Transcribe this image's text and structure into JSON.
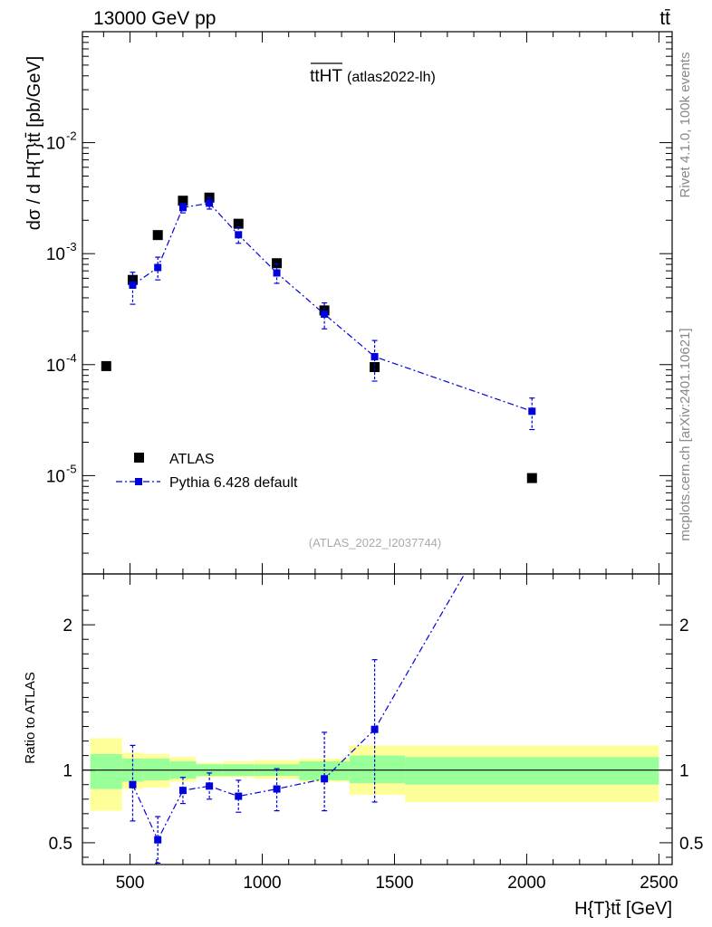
{
  "header": {
    "energy_label": "13000 GeV pp",
    "process_label": "tt̄"
  },
  "side_labels": {
    "rivet": "Rivet 4.1.0,  100k events",
    "mcplots": "mcplots.cern.ch [arXiv:2401.10621]"
  },
  "plot_title": {
    "main": "ttHT",
    "sub": "(atlas2022-lh)"
  },
  "watermark": "(ATLAS_2022_I2037744)",
  "legend": {
    "data_label": "ATLAS",
    "mc_label": "Pythia 6.428 default"
  },
  "colors": {
    "data": "#000000",
    "mc": "#0000dd",
    "band_inner": "#99ff99",
    "band_outer": "#ffff99"
  },
  "chart_data": [
    {
      "type": "scatter",
      "panel": "main",
      "ylabel": "dσ / d H{T}tt̄ [pb/GeV]",
      "yscale": "log",
      "ylim": [
        1.3e-06,
        0.1
      ],
      "xlim": [
        320,
        2550
      ],
      "ytick_labels": [
        "10^-5",
        "10^-4",
        "10^-3",
        "10^-2"
      ],
      "ytick_values": [
        1e-05,
        0.0001,
        0.001,
        0.01
      ],
      "series": [
        {
          "name": "ATLAS",
          "x": [
            410,
            510,
            605,
            700,
            800,
            910,
            1055,
            1235,
            1425,
            2020
          ],
          "xlow": [
            350,
            470,
            550,
            650,
            750,
            850,
            970,
            1140,
            1330,
            1540
          ],
          "xhigh": [
            470,
            550,
            650,
            750,
            850,
            970,
            1140,
            1330,
            1540,
            2500
          ],
          "values": [
            9.7e-05,
            0.00058,
            0.00147,
            0.003,
            0.0032,
            0.00186,
            0.00082,
            0.000308,
            9.5e-05,
            9.5e-06
          ]
        },
        {
          "name": "Pythia 6.428 default",
          "x": [
            510,
            605,
            700,
            800,
            910,
            1055,
            1235,
            1425,
            2020
          ],
          "values": [
            0.00052,
            0.00075,
            0.0026,
            0.00285,
            0.00148,
            0.00067,
            0.000285,
            0.000118,
            3.8e-05
          ],
          "err_low": [
            0.00035,
            0.00058,
            0.00233,
            0.00252,
            0.00124,
            0.00054,
            0.00021,
            7.1e-05,
            2.6e-05
          ],
          "err_high": [
            0.00068,
            0.00093,
            0.00284,
            0.00322,
            0.00174,
            0.00081,
            0.00036,
            0.000165,
            5e-05
          ]
        }
      ]
    },
    {
      "type": "scatter",
      "panel": "ratio",
      "xlabel": "H{T}tt̄ [GeV]",
      "ylabel": "Ratio to ATLAS",
      "ylim": [
        0.35,
        2.35
      ],
      "xlim": [
        320,
        2550
      ],
      "xtick_values": [
        500,
        1000,
        1500,
        2000,
        2500
      ],
      "xtick_labels": [
        "500",
        "1000",
        "1500",
        "2000",
        "2500"
      ],
      "ytick_values": [
        0.5,
        1,
        2
      ],
      "ytick_labels": [
        "0.5",
        "1",
        "2"
      ],
      "bands": {
        "xlow": [
          350,
          470,
          550,
          650,
          750,
          850,
          970,
          1140,
          1330,
          1540
        ],
        "xhigh": [
          470,
          550,
          650,
          750,
          850,
          970,
          1140,
          1330,
          1540,
          2500
        ],
        "inner_low": [
          0.87,
          0.92,
          0.93,
          0.94,
          0.96,
          0.96,
          0.96,
          0.93,
          0.91,
          0.9
        ],
        "inner_high": [
          1.11,
          1.08,
          1.08,
          1.06,
          1.04,
          1.04,
          1.04,
          1.06,
          1.1,
          1.09
        ],
        "outer_low": [
          0.72,
          0.87,
          0.88,
          0.92,
          0.95,
          0.95,
          0.94,
          0.92,
          0.83,
          0.78
        ],
        "outer_high": [
          1.22,
          1.12,
          1.11,
          1.09,
          1.05,
          1.06,
          1.07,
          1.08,
          1.17,
          1.17
        ]
      },
      "series": [
        {
          "name": "Pythia 6.428 default",
          "x": [
            510,
            605,
            700,
            800,
            910,
            1055,
            1235,
            1425
          ],
          "values": [
            0.9,
            0.52,
            0.86,
            0.89,
            0.82,
            0.87,
            0.94,
            1.28
          ],
          "err_low": [
            0.65,
            0.36,
            0.77,
            0.8,
            0.71,
            0.72,
            0.72,
            0.78
          ],
          "err_high": [
            1.17,
            0.68,
            0.95,
            0.98,
            0.93,
            1.01,
            1.26,
            1.76
          ],
          "continues_to": [
            1765,
            2.35
          ]
        }
      ]
    }
  ]
}
